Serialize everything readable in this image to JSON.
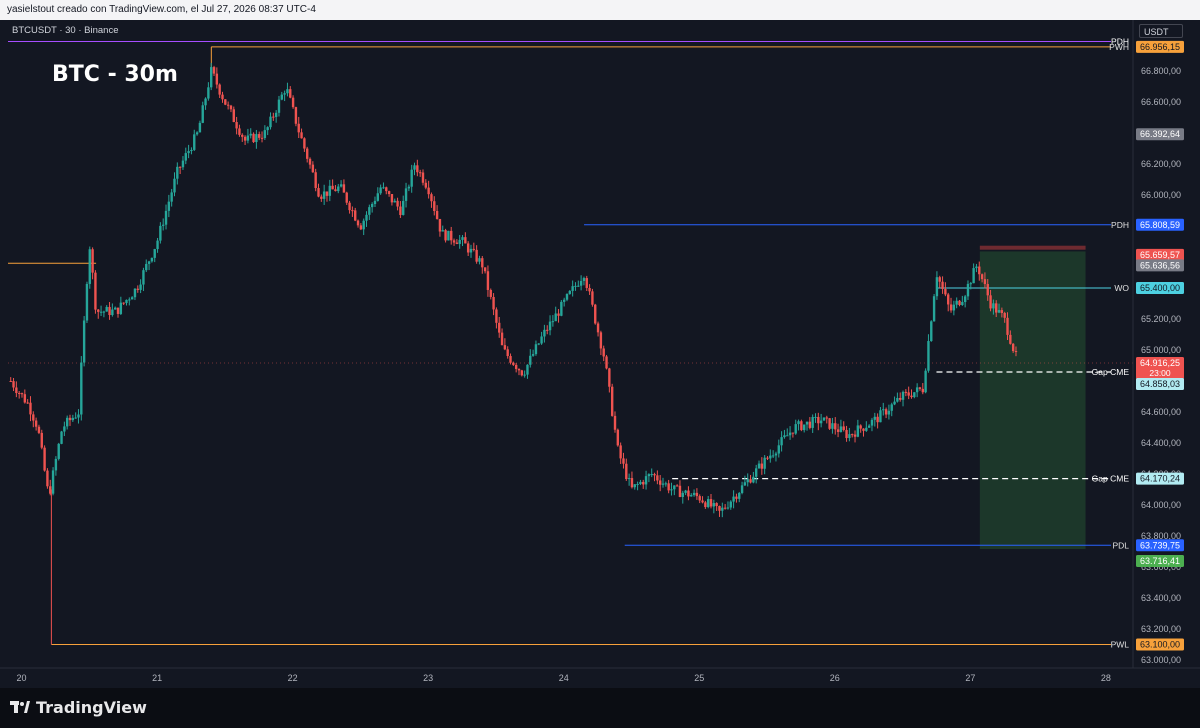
{
  "header": {
    "attribution": "yasielstout creado con TradingView.com, el Jul 27, 2026 08:37 UTC-4"
  },
  "chart_header": {
    "symbol_line": "BTCUSDT · 30 · Binance",
    "currency": "USDT"
  },
  "chart_title": "BTC - 30m",
  "footer": {
    "brand": "TradingView"
  },
  "colors": {
    "background": "#131722",
    "up": "#26a69a",
    "down": "#ef5350",
    "blue_line": "#2962ff",
    "orange_line": "#f7a13b",
    "purple_line": "#a64dff",
    "cyan_line": "#4dd0e1",
    "zone": "#1f3d2c",
    "zone_top": "#6e2a30"
  },
  "chart_data": {
    "type": "candlestick",
    "interval": "30m",
    "ylim": [
      63000,
      67000
    ],
    "xlim": [
      19.9,
      28.2
    ],
    "x_ticks": [
      {
        "value": 20,
        "label": "20"
      },
      {
        "value": 21,
        "label": "21"
      },
      {
        "value": 22,
        "label": "22"
      },
      {
        "value": 23,
        "label": "23"
      },
      {
        "value": 24,
        "label": "24"
      },
      {
        "value": 25,
        "label": "25"
      },
      {
        "value": 26,
        "label": "26"
      },
      {
        "value": 27,
        "label": "27"
      },
      {
        "value": 28,
        "label": "28"
      }
    ],
    "y_ticks": [
      {
        "value": 66800,
        "label": "66.800,00"
      },
      {
        "value": 66600,
        "label": "66.600,00"
      },
      {
        "value": 66200,
        "label": "66.200,00"
      },
      {
        "value": 66000,
        "label": "66.000,00"
      },
      {
        "value": 65800,
        "label": "65.800,00"
      },
      {
        "value": 65200,
        "label": "65.200,00"
      },
      {
        "value": 65000,
        "label": "65.000,00"
      },
      {
        "value": 64600,
        "label": "64.600,00"
      },
      {
        "value": 64400,
        "label": "64.400,00"
      },
      {
        "value": 64200,
        "label": "64.200,00"
      },
      {
        "value": 64000,
        "label": "64.000,00"
      },
      {
        "value": 63800,
        "label": "63.800,00"
      },
      {
        "value": 63600,
        "label": "63.600,00"
      },
      {
        "value": 63400,
        "label": "63.400,00"
      },
      {
        "value": 63200,
        "label": "63.200,00"
      },
      {
        "value": 63000,
        "label": "63.000,00"
      }
    ],
    "price_path": [
      [
        19.92,
        64800
      ],
      [
        20.05,
        64650
      ],
      [
        20.12,
        64500
      ],
      [
        20.2,
        64050
      ],
      [
        20.3,
        64500
      ],
      [
        20.42,
        64600
      ],
      [
        20.5,
        65700
      ],
      [
        20.55,
        65250
      ],
      [
        20.7,
        65250
      ],
      [
        20.85,
        65400
      ],
      [
        21.0,
        65700
      ],
      [
        21.15,
        66150
      ],
      [
        21.3,
        66400
      ],
      [
        21.4,
        66800
      ],
      [
        21.5,
        66600
      ],
      [
        21.65,
        66350
      ],
      [
        21.8,
        66400
      ],
      [
        21.95,
        66700
      ],
      [
        22.05,
        66400
      ],
      [
        22.2,
        66000
      ],
      [
        22.35,
        66050
      ],
      [
        22.5,
        65800
      ],
      [
        22.65,
        66050
      ],
      [
        22.8,
        65900
      ],
      [
        22.9,
        66200
      ],
      [
        23.0,
        66050
      ],
      [
        23.1,
        65750
      ],
      [
        23.25,
        65700
      ],
      [
        23.4,
        65550
      ],
      [
        23.55,
        65000
      ],
      [
        23.7,
        64850
      ],
      [
        23.85,
        65100
      ],
      [
        24.0,
        65300
      ],
      [
        24.15,
        65500
      ],
      [
        24.3,
        64950
      ],
      [
        24.4,
        64350
      ],
      [
        24.5,
        64100
      ],
      [
        24.65,
        64200
      ],
      [
        24.8,
        64100
      ],
      [
        25.0,
        64050
      ],
      [
        25.15,
        63950
      ],
      [
        25.3,
        64100
      ],
      [
        25.5,
        64300
      ],
      [
        25.7,
        64500
      ],
      [
        25.9,
        64550
      ],
      [
        26.1,
        64450
      ],
      [
        26.3,
        64550
      ],
      [
        26.5,
        64700
      ],
      [
        26.65,
        64750
      ],
      [
        26.75,
        65500
      ],
      [
        26.85,
        65250
      ],
      [
        26.95,
        65350
      ],
      [
        27.05,
        65550
      ],
      [
        27.15,
        65300
      ],
      [
        27.25,
        65200
      ],
      [
        27.35,
        64916
      ]
    ],
    "levels": [
      {
        "name": "PDH",
        "value": 66990,
        "x0": 19.9,
        "color": "#a64dff"
      },
      {
        "name": "PWH",
        "value": 66956,
        "x0": 21.4,
        "color": "#f7a13b"
      },
      {
        "name": "PDH",
        "value": 65808,
        "x0": 24.15,
        "color": "#2962ff"
      },
      {
        "name": "",
        "value": 65560,
        "x0": 19.9,
        "x1": 20.55,
        "color": "#f7a13b"
      },
      {
        "name": "WO",
        "value": 65400,
        "x0": 26.75,
        "color": "#4dd0e1"
      },
      {
        "name": "Gap CME",
        "value": 64858,
        "x0": 26.75,
        "color": "#ffffff",
        "dashed": true
      },
      {
        "name": "Gap CME",
        "value": 64170,
        "x0": 24.8,
        "color": "#ffffff",
        "dashed": true
      },
      {
        "name": "PDL",
        "value": 63740,
        "x0": 24.45,
        "color": "#2962ff"
      },
      {
        "name": "PWL",
        "value": 63100,
        "x0": 20.22,
        "color": "#f7a13b"
      }
    ],
    "short_position": {
      "x0": 27.07,
      "x1": 27.85,
      "entry": 65636,
      "stop": 65660,
      "target": 63716
    },
    "price_labels": [
      {
        "label": "66.956,15",
        "value": 66956,
        "bg": "#f7a13b",
        "fg": "#131722"
      },
      {
        "label": "66.392,64",
        "value": 66392,
        "bg": "#787b86",
        "fg": "#ffffff"
      },
      {
        "label": "65.808,59",
        "value": 65808,
        "bg": "#2962ff",
        "fg": "#ffffff"
      },
      {
        "label": "65.659,57",
        "value": 65659,
        "bg": "#ef5350",
        "fg": "#ffffff",
        "offset": 7
      },
      {
        "label": "65.636,56",
        "value": 65636,
        "bg": "#787b86",
        "fg": "#ffffff",
        "offset": 14
      },
      {
        "label": "65.400,00",
        "value": 65400,
        "bg": "#4dd0e1",
        "fg": "#131722"
      },
      {
        "label": "64.916,25",
        "value": 64916,
        "bg": "#ef5350",
        "fg": "#ffffff",
        "sub": "23:00"
      },
      {
        "label": "64.858,03",
        "value": 64858,
        "bg": "#b2ebf2",
        "fg": "#131722",
        "offset": 12
      },
      {
        "label": "64.170,24",
        "value": 64170,
        "bg": "#b2ebf2",
        "fg": "#131722"
      },
      {
        "label": "63.739,75",
        "value": 63740,
        "bg": "#2962ff",
        "fg": "#ffffff"
      },
      {
        "label": "63.716,41",
        "value": 63716,
        "bg": "#4caf50",
        "fg": "#ffffff",
        "offset": 12
      },
      {
        "label": "63.100,00",
        "value": 63100,
        "bg": "#f7a13b",
        "fg": "#131722"
      }
    ]
  }
}
